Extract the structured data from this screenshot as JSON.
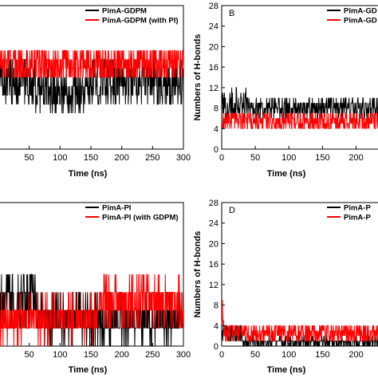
{
  "colors": {
    "series1": "#000000",
    "series2": "#ff0000"
  },
  "chart_data": [
    {
      "type": "line",
      "panel_label": "",
      "xlabel": "Time (ns)",
      "ylabel": "",
      "xlim": [
        0,
        300
      ],
      "xticks": [
        50,
        100,
        150,
        200,
        250,
        300
      ],
      "legend": "top-right",
      "series": [
        {
          "name": "PimA-GDPM",
          "segments": [
            {
              "x": [
                0,
                60
              ],
              "mean": 7.5,
              "amp": 2.5
            },
            {
              "x": [
                60,
                150
              ],
              "mean": 6.5,
              "amp": 2.5
            },
            {
              "x": [
                150,
                300
              ],
              "mean": 7.5,
              "amp": 2.5
            }
          ]
        },
        {
          "name": "PimA-GDPM (with PI)",
          "segments": [
            {
              "x": [
                0,
                300
              ],
              "mean": 9.5,
              "amp": 2
            }
          ]
        }
      ]
    },
    {
      "type": "line",
      "panel_label": "B",
      "xlabel": "Time (ns)",
      "ylabel": "Numbers of H-bonds",
      "xlim": [
        0,
        235
      ],
      "ylim": [
        0,
        28
      ],
      "xticks": [
        0,
        50,
        100,
        150,
        200
      ],
      "yticks": [
        0,
        4,
        8,
        12,
        16,
        20,
        24,
        28
      ],
      "legend": "top-right",
      "series": [
        {
          "name": "PimA-GD",
          "segments": [
            {
              "x": [
                0,
                10
              ],
              "mean": 8,
              "amp": 3
            },
            {
              "x": [
                10,
                40
              ],
              "mean": 9,
              "amp": 3
            },
            {
              "x": [
                40,
                235
              ],
              "mean": 8,
              "amp": 2
            }
          ]
        },
        {
          "name": "PimA-GD",
          "segments": [
            {
              "x": [
                0,
                235
              ],
              "mean": 5.5,
              "amp": 2
            }
          ]
        }
      ]
    },
    {
      "type": "line",
      "panel_label": "",
      "xlabel": "Time (ns)",
      "ylabel": "",
      "xlim": [
        0,
        300
      ],
      "xticks": [
        50,
        100,
        150,
        200,
        250,
        300
      ],
      "legend": "top-right",
      "series": [
        {
          "name": "PimA-PI",
          "segments": [
            {
              "x": [
                0,
                60
              ],
              "mean": 2.5,
              "amp": 1.5
            },
            {
              "x": [
                60,
                300
              ],
              "mean": 1.5,
              "amp": 1.2
            }
          ]
        },
        {
          "name": "PimA-PI (with GDPM)",
          "segments": [
            {
              "x": [
                0,
                160
              ],
              "mean": 1.5,
              "amp": 1.2
            },
            {
              "x": [
                160,
                300
              ],
              "mean": 2.5,
              "amp": 1.3
            }
          ]
        }
      ]
    },
    {
      "type": "line",
      "panel_label": "D",
      "xlabel": "Time (ns)",
      "ylabel": "Numbers of H-bonds",
      "xlim": [
        0,
        235
      ],
      "ylim": [
        0,
        28
      ],
      "xticks": [
        0,
        50,
        100,
        150,
        200
      ],
      "yticks": [
        0,
        4,
        8,
        12,
        16,
        20,
        24,
        28
      ],
      "legend": "top-right",
      "series": [
        {
          "name": "PimA-P",
          "segments": [
            {
              "x": [
                0,
                30
              ],
              "mean": 2.5,
              "amp": 2
            },
            {
              "x": [
                30,
                235
              ],
              "mean": 0.8,
              "amp": 0.8
            }
          ]
        },
        {
          "name": "PimA-P",
          "segments": [
            {
              "x": [
                0,
                3
              ],
              "mean": 6,
              "amp": 3
            },
            {
              "x": [
                3,
                235
              ],
              "mean": 2.5,
              "amp": 2
            }
          ]
        }
      ]
    }
  ]
}
